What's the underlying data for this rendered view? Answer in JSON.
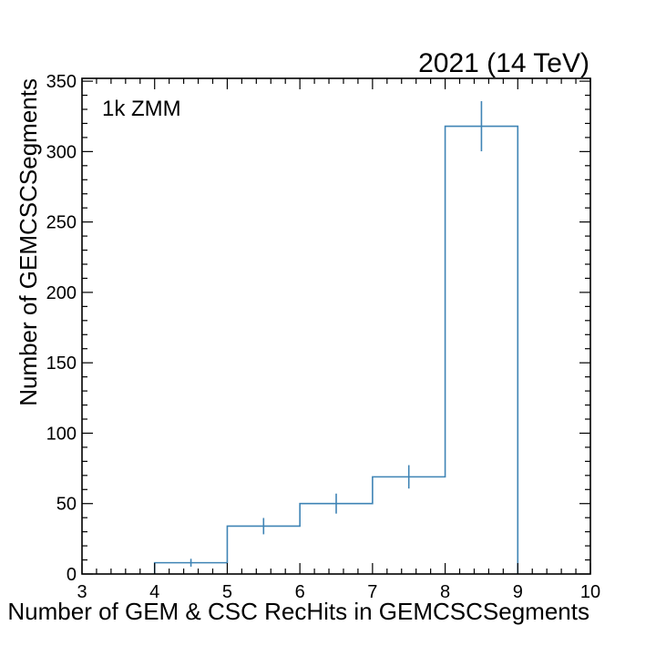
{
  "chart_data": {
    "type": "histogram",
    "title": "2021 (14 TeV)",
    "annotation": "1k ZMM",
    "xlabel": "Number of GEM & CSC RecHits in GEMCSCSegments",
    "ylabel": "Number of GEMCSCSegments",
    "xlim": [
      3,
      10
    ],
    "ylim": [
      0,
      352
    ],
    "x_ticks": [
      "3",
      "4",
      "5",
      "6",
      "7",
      "8",
      "9",
      "10"
    ],
    "y_ticks": [
      "0",
      "50",
      "100",
      "150",
      "200",
      "250",
      "300",
      "350"
    ],
    "bin_edges": [
      4,
      5,
      6,
      7,
      8,
      9
    ],
    "values": [
      8,
      34,
      50,
      69,
      318
    ],
    "errors": [
      2.8,
      5.8,
      7.1,
      8.3,
      17.8
    ],
    "grid": false,
    "line_color": "#3f84b5"
  }
}
